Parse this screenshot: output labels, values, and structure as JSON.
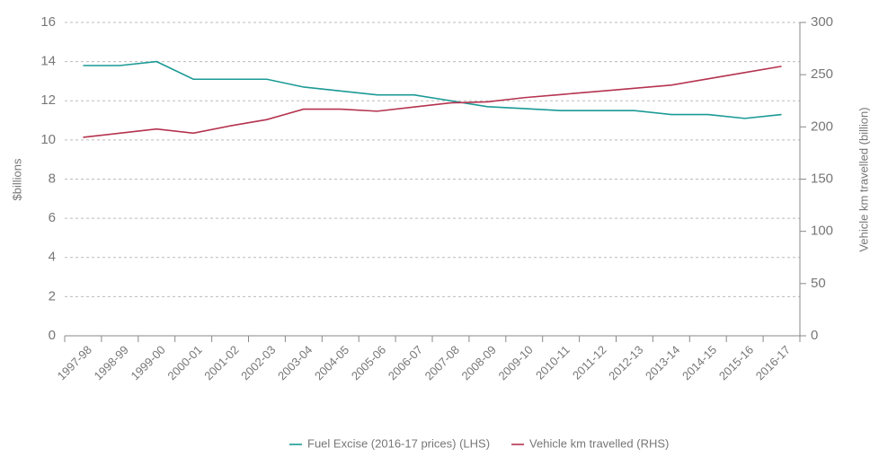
{
  "chart_data": {
    "type": "line",
    "categories": [
      "1997-98",
      "1998-99",
      "1999-00",
      "2000-01",
      "2001-02",
      "2002-03",
      "2003-04",
      "2004-05",
      "2005-06",
      "2006-07",
      "2007-08",
      "2008-09",
      "2009-10",
      "2010-11",
      "2011-12",
      "2012-13",
      "2013-14",
      "2014-15",
      "2015-16",
      "2016-17"
    ],
    "series": [
      {
        "name": "Fuel Excise (2016-17 prices) (LHS)",
        "color": "#1a9a95",
        "values": [
          13.8,
          13.8,
          14.0,
          13.1,
          13.1,
          13.1,
          12.7,
          12.5,
          12.3,
          12.3,
          12.0,
          11.7,
          11.6,
          11.5,
          11.5,
          11.5,
          11.3,
          11.3,
          11.1,
          11.3
        ]
      },
      {
        "name": "Vehicle km travelled (RHS)",
        "color": "#b5334f",
        "axis": "y2",
        "values": [
          190,
          194,
          198,
          194,
          201,
          207,
          217,
          217,
          215,
          219,
          223,
          224,
          228,
          231,
          234,
          237,
          240,
          246,
          252,
          258
        ]
      }
    ],
    "ylabel": "$billions",
    "y2label": "Vehicle km travelled (billion)",
    "ylim": [
      0,
      16
    ],
    "yticks": [
      0,
      2,
      4,
      6,
      8,
      10,
      12,
      14,
      16
    ],
    "y2lim": [
      0,
      300
    ],
    "y2ticks": [
      0,
      50,
      100,
      150,
      200,
      250,
      300
    ],
    "grid": true,
    "legend": "bottom"
  }
}
